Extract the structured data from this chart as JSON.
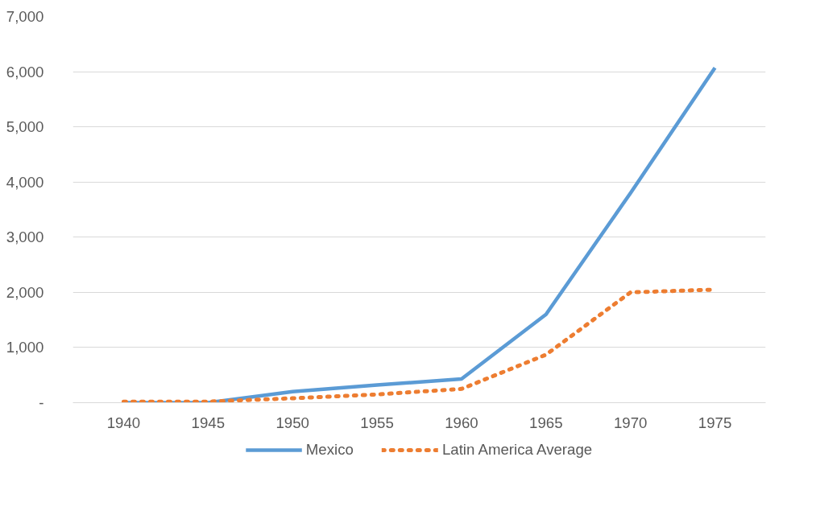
{
  "chart_data": {
    "type": "line",
    "categories": [
      "1940",
      "1945",
      "1950",
      "1955",
      "1960",
      "1965",
      "1970",
      "1975"
    ],
    "series": [
      {
        "name": "Mexico",
        "color": "#5b9bd5",
        "line_style": "solid",
        "values": [
          0,
          0,
          200,
          320,
          430,
          1600,
          3800,
          6070
        ]
      },
      {
        "name": "Latin America Average",
        "color": "#ed7d31",
        "line_style": "dotted",
        "values": [
          20,
          20,
          80,
          150,
          250,
          870,
          2000,
          2050
        ]
      }
    ],
    "ylim": [
      0,
      7000
    ],
    "yticks": [
      {
        "value": 0,
        "label": "-"
      },
      {
        "value": 1000,
        "label": "1,000"
      },
      {
        "value": 2000,
        "label": "2,000"
      },
      {
        "value": 3000,
        "label": "3,000"
      },
      {
        "value": 4000,
        "label": "4,000"
      },
      {
        "value": 5000,
        "label": "5,000"
      },
      {
        "value": 6000,
        "label": "6,000"
      },
      {
        "value": 7000,
        "label": "7,000"
      }
    ],
    "grid": "y",
    "legend": "bottom",
    "marker": "none"
  }
}
